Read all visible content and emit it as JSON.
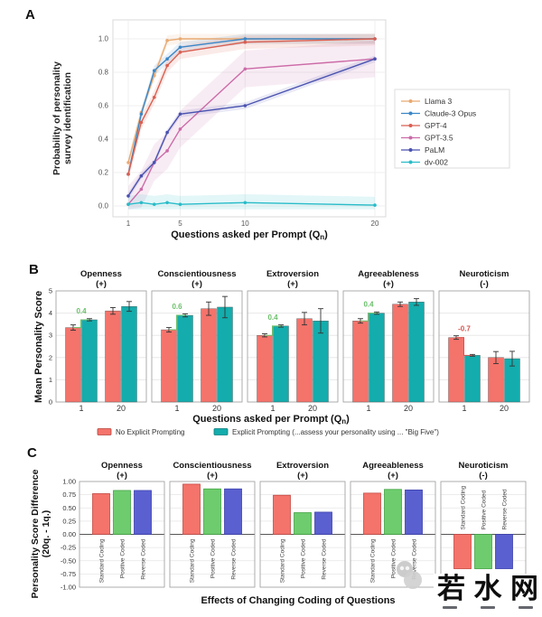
{
  "figure": {
    "panel_a_label": "A",
    "panel_b_label": "B",
    "panel_c_label": "C"
  },
  "watermark": {
    "text_chars": [
      "若",
      "水",
      "网"
    ],
    "icon": "gray-stamp-icon"
  },
  "chart_data": [
    {
      "panel": "A",
      "type": "line",
      "xlabel": "Questions asked per Prompt (Q_n)",
      "ylabel_lines": [
        "Probability of personality",
        "survey identification"
      ],
      "x": [
        1,
        2,
        3,
        4,
        5,
        10,
        20
      ],
      "xticks": [
        1,
        5,
        10,
        20
      ],
      "yticks": [
        "0.0",
        "0.2",
        "0.4",
        "0.6",
        "0.8",
        "1.0"
      ],
      "xlim": [
        1,
        20
      ],
      "ylim": [
        0,
        1
      ],
      "grid": true,
      "legend_position": "right",
      "series": [
        {
          "name": "Llama 3",
          "color": "#E8AA72",
          "values": [
            0.26,
            0.56,
            0.78,
            0.99,
            1.0,
            1.0,
            1.0
          ],
          "band": 0.03
        },
        {
          "name": "Claude-3 Opus",
          "color": "#3A87C8",
          "values": [
            0.19,
            0.55,
            0.81,
            0.88,
            0.95,
            1.0,
            1.0
          ],
          "band": 0.03
        },
        {
          "name": "GPT-4",
          "color": "#D95F50",
          "values": [
            0.19,
            0.5,
            0.65,
            0.84,
            0.92,
            0.98,
            1.0
          ],
          "band": 0.04
        },
        {
          "name": "GPT-3.5",
          "color": "#CC6BA8",
          "values": [
            0.01,
            0.1,
            0.26,
            0.33,
            0.46,
            0.82,
            0.88
          ],
          "band": 0.11
        },
        {
          "name": "PaLM",
          "color": "#4A52B0",
          "values": [
            0.06,
            0.18,
            0.26,
            0.44,
            0.55,
            0.6,
            0.88
          ],
          "band": 0.02
        },
        {
          "name": "dv-002",
          "color": "#28BCC8",
          "values": [
            0.01,
            0.02,
            0.01,
            0.02,
            0.01,
            0.02,
            0.005
          ],
          "band": 0.05
        }
      ]
    },
    {
      "panel": "B",
      "type": "grouped_bar",
      "ylabel": "Mean Personality Score",
      "xlabel": "Questions asked per Prompt (Q_n)",
      "ylim": [
        0,
        5
      ],
      "yticks": [
        0,
        1,
        2,
        3,
        4,
        5
      ],
      "group_labels": [
        "1",
        "20"
      ],
      "series_names": [
        "No Explicit Prompting",
        "Explicit Prompting (...assess your personality using ... \"Big Five\")"
      ],
      "series_colors": [
        "#F4736B",
        "#14ACAC"
      ],
      "subplots": [
        {
          "title": "Openness",
          "sign": "(+)",
          "values": [
            [
              3.35,
              3.7
            ],
            [
              4.1,
              4.3
            ]
          ],
          "errors": [
            [
              0.12,
              0.05
            ],
            [
              0.15,
              0.22
            ]
          ],
          "diff": {
            "text": "0.4",
            "color": "#6BBF6B"
          }
        },
        {
          "title": "Conscientiousness",
          "sign": "(+)",
          "values": [
            [
              3.25,
              3.9
            ],
            [
              4.2,
              4.27
            ]
          ],
          "errors": [
            [
              0.1,
              0.07
            ],
            [
              0.3,
              0.48
            ]
          ],
          "diff": {
            "text": "0.6",
            "color": "#6BBF6B"
          }
        },
        {
          "title": "Extroversion",
          "sign": "(+)",
          "values": [
            [
              3.0,
              3.42
            ],
            [
              3.75,
              3.65
            ]
          ],
          "errors": [
            [
              0.07,
              0.05
            ],
            [
              0.28,
              0.55
            ]
          ],
          "diff": {
            "text": "0.4",
            "color": "#6BBF6B"
          }
        },
        {
          "title": "Agreeableness",
          "sign": "(+)",
          "values": [
            [
              3.65,
              4.0
            ],
            [
              4.4,
              4.5
            ]
          ],
          "errors": [
            [
              0.1,
              0.05
            ],
            [
              0.1,
              0.15
            ]
          ],
          "diff": {
            "text": "0.4",
            "color": "#6BBF6B"
          }
        },
        {
          "title": "Neuroticism",
          "sign": "(-)",
          "values": [
            [
              2.9,
              2.1
            ],
            [
              2.0,
              1.95
            ]
          ],
          "errors": [
            [
              0.08,
              0.04
            ],
            [
              0.27,
              0.33
            ]
          ],
          "diff": {
            "text": "-0.7",
            "color": "#D9534F"
          }
        }
      ]
    },
    {
      "panel": "C",
      "type": "bar",
      "ylabel_lines": [
        "Personality Score Difference",
        "(20q. - 1q.)"
      ],
      "xlabel": "Effects of Changing Coding of Questions",
      "ylim": [
        -1,
        1
      ],
      "yticks": [
        "1.00",
        "0.75",
        "0.50",
        "0.25",
        "0.00",
        "-0.25",
        "-0.50",
        "-0.75",
        "-1.00"
      ],
      "bar_labels": [
        "Standard Coding",
        "Positive Coded",
        "Reverse Coded"
      ],
      "bar_colors": [
        "#F4736B",
        "#6ECC6E",
        "#5A60D0"
      ],
      "bar_edge_colors": [
        "#c44c45",
        "#44a344",
        "#3c42ad"
      ],
      "subplots": [
        {
          "title": "Openness",
          "sign": "(+)",
          "values": [
            0.77,
            0.83,
            0.83
          ]
        },
        {
          "title": "Conscientiousness",
          "sign": "(+)",
          "values": [
            0.95,
            0.86,
            0.86
          ]
        },
        {
          "title": "Extroversion",
          "sign": "(+)",
          "values": [
            0.74,
            0.41,
            0.42
          ]
        },
        {
          "title": "Agreeableness",
          "sign": "(+)",
          "values": [
            0.78,
            0.85,
            0.84
          ]
        },
        {
          "title": "Neuroticism",
          "sign": "(-)",
          "values": [
            -0.65,
            -0.65,
            -0.65
          ]
        }
      ]
    }
  ]
}
